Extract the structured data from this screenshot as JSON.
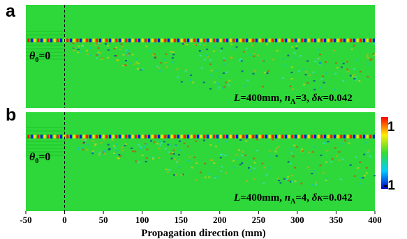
{
  "chart_data": [
    {
      "type": "heatmap",
      "panel": "a",
      "annotation_left": {
        "symbol": "θ",
        "subscript": "0",
        "value": "=0"
      },
      "annotation_right": {
        "L": "L",
        "L_value": "=400mm, ",
        "n": "n",
        "n_sub": "Λ",
        "n_value": "=3, ",
        "dk": "δκ",
        "dk_value": "=0.042"
      },
      "xlim": [
        -50,
        400
      ]
    },
    {
      "type": "heatmap",
      "panel": "b",
      "annotation_left": {
        "symbol": "θ",
        "subscript": "0",
        "value": "=0"
      },
      "annotation_right": {
        "L": "L",
        "L_value": "=400mm, ",
        "n": "n",
        "n_sub": "Λ",
        "n_value": "=4, ",
        "dk": "δκ",
        "dk_value": "=0.042"
      },
      "xlim": [
        -50,
        400
      ]
    }
  ],
  "x_axis": {
    "label": "Propagation direction (mm)",
    "ticks": [
      -50,
      0,
      50,
      100,
      150,
      200,
      250,
      300,
      350,
      400
    ],
    "tick_labels": [
      "-50",
      "0",
      "50",
      "100",
      "150",
      "200",
      "250",
      "300",
      "350",
      "400"
    ]
  },
  "colorbar": {
    "range": [
      -1,
      1
    ],
    "labels": {
      "max": "1",
      "min": "-1"
    },
    "colors": [
      "#0000cc",
      "#00ccff",
      "#33dd33",
      "#ffee00",
      "#ff0000"
    ]
  },
  "colors": {
    "background": "#2ed83a",
    "guide_line": "#000000"
  }
}
